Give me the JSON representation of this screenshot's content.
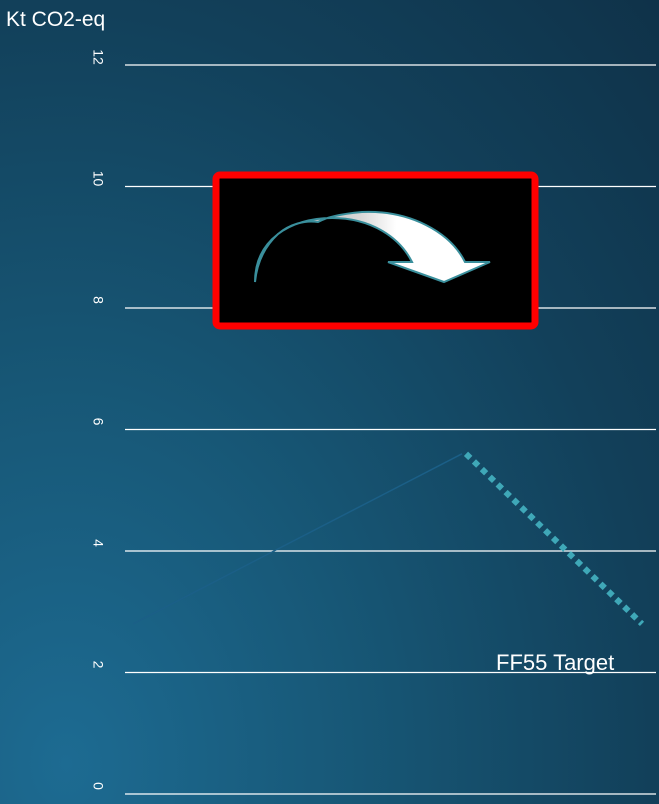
{
  "chart_data": {
    "type": "line",
    "ylabel": "Kt CO2-eq",
    "ylim": [
      0,
      12
    ],
    "y_ticks": [
      "0",
      "2",
      "4",
      "6",
      "8",
      "10",
      "12"
    ],
    "grid": true,
    "series": [
      {
        "values": [
          2.8,
          5.6
        ],
        "style": "solid",
        "color": "#1b5f87"
      },
      {
        "values": [
          5.6,
          2.8
        ],
        "style": "dotted",
        "color": "#3fa8b8"
      }
    ],
    "annotations": [
      {
        "text": "FF55 Target"
      }
    ],
    "colors": {
      "grid": "#ffffff",
      "overlay_border": "#ff0000",
      "overlay_fill": "#000000",
      "arrow_fill": "#ffffff",
      "arrow_shade": "#a9a9a9",
      "arrow_outline": "#3a8f9c"
    },
    "overlay": {
      "icon": "curved-arrow-icon"
    }
  }
}
